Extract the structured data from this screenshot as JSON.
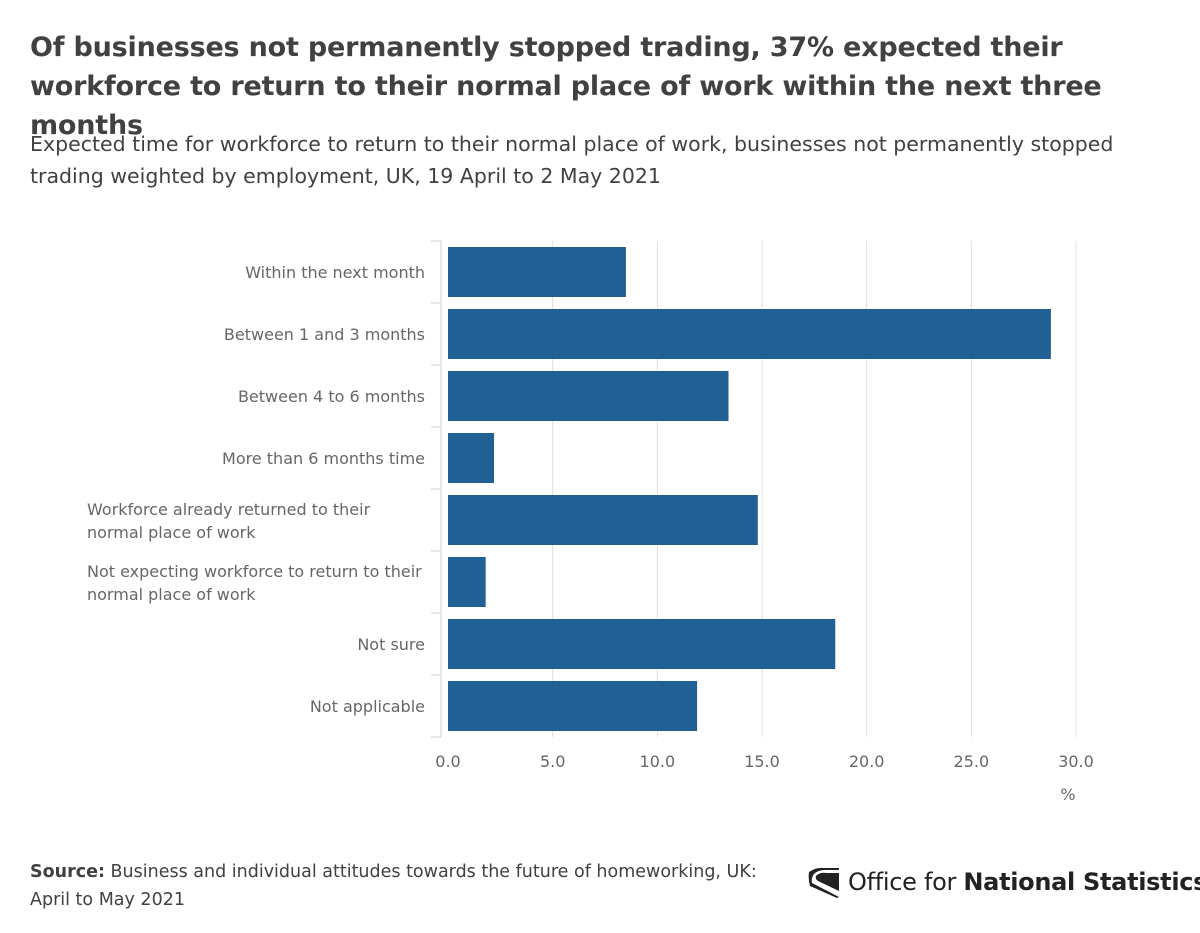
{
  "header": {
    "title": "Of businesses not permanently stopped trading, 37% expected their workforce to return to their normal place of work within the next three months",
    "subtitle": "Expected time for workforce to return to their normal place of work, businesses not permanently stopped trading weighted by employment, UK, 19 April to 2 May 2021"
  },
  "chart_data": {
    "type": "bar",
    "orientation": "horizontal",
    "categories": [
      [
        "Within the next month"
      ],
      [
        "Between 1 and 3 months"
      ],
      [
        "Between 4 to 6 months"
      ],
      [
        "More than 6 months time"
      ],
      [
        "Workforce already returned to their",
        "normal place of work"
      ],
      [
        "Not expecting workforce to return to their",
        "normal place of work"
      ],
      [
        "Not sure"
      ],
      [
        "Not applicable"
      ]
    ],
    "values": [
      8.5,
      28.8,
      13.4,
      2.2,
      14.8,
      1.8,
      18.5,
      11.9
    ],
    "xlim": [
      0,
      30
    ],
    "xticks": [
      0,
      5,
      10,
      15,
      20,
      25,
      30
    ],
    "xtick_labels": [
      "0.0",
      "5.0",
      "10.0",
      "15.0",
      "20.0",
      "25.0",
      "30.0"
    ],
    "xlabel": "%",
    "ylabel": "",
    "grid": true,
    "legend": "none",
    "bar_color": "#206095",
    "grid_color": "#e0e0e0"
  },
  "footer": {
    "source_label": "Source:",
    "source_text": "Business and individual attitudes towards the future of homeworking, UK: April to May 2021",
    "logo": {
      "icon": "ons-logo-icon",
      "text_regular": "Office for ",
      "text_bold": "National Statistics"
    }
  }
}
